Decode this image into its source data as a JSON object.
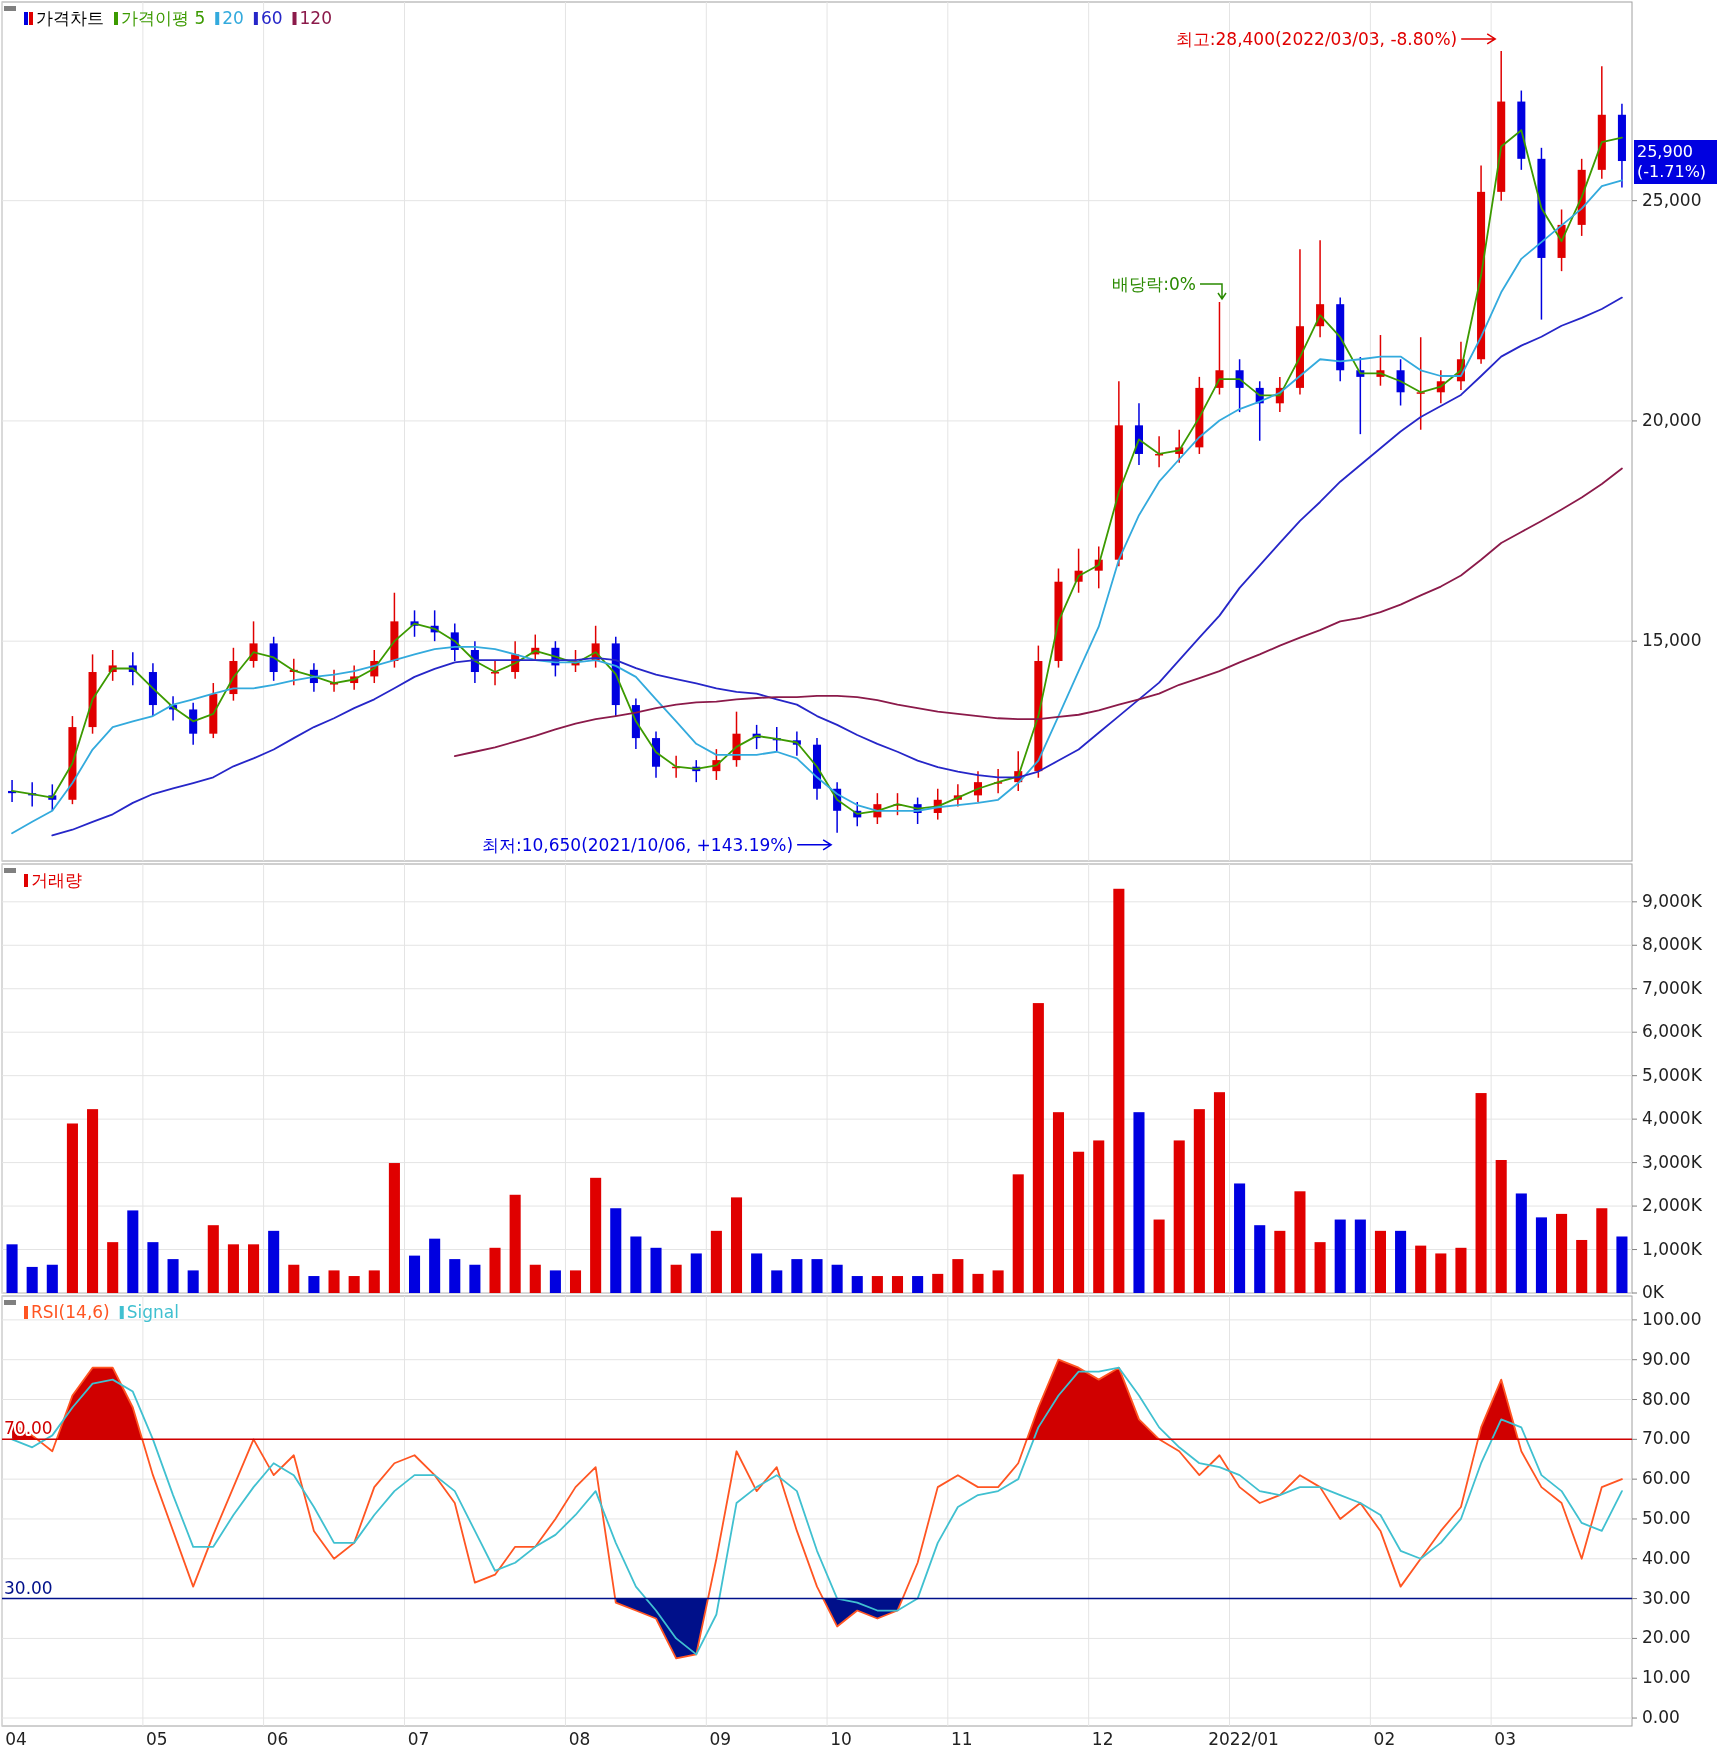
{
  "chart_data": [
    {
      "type": "candlestick",
      "legend": "top left",
      "grid": true,
      "tick_labels": "y",
      "categories": [
        "04",
        null,
        null,
        null,
        null,
        null,
        null,
        "05",
        null,
        null,
        null,
        null,
        null,
        "06",
        null,
        null,
        null,
        null,
        null,
        null,
        "07",
        null,
        null,
        null,
        null,
        null,
        null,
        null,
        "08",
        null,
        null,
        null,
        null,
        null,
        null,
        "09",
        null,
        null,
        null,
        null,
        null,
        "10",
        null,
        null,
        null,
        null,
        null,
        "11",
        null,
        null,
        null,
        null,
        null,
        null,
        "12",
        null,
        null,
        null,
        null,
        null,
        null,
        "2022/01",
        null,
        null,
        null,
        null,
        null,
        null,
        "02",
        null,
        null,
        null,
        null,
        null,
        "03",
        null,
        null,
        null,
        null,
        null,
        null
      ],
      "ylim": [
        10010,
        29510
      ],
      "yticks": [
        {
          "value": 15000,
          "label": "15,000"
        },
        {
          "value": 20000,
          "label": "20,000"
        },
        {
          "value": 25000,
          "label": "25,000"
        }
      ],
      "series": [
        {
          "type": "candlestick",
          "name": "가격차트",
          "ohlc": [
            [
              11600,
              11850,
              11350,
              11550
            ],
            [
              11550,
              11800,
              11250,
              11500
            ],
            [
              11500,
              11750,
              11150,
              11400
            ],
            [
              11400,
              13300,
              11300,
              13050
            ],
            [
              13050,
              14700,
              12900,
              14300
            ],
            [
              14300,
              14800,
              14100,
              14450
            ],
            [
              14450,
              14750,
              14000,
              14300
            ],
            [
              14300,
              14500,
              13300,
              13550
            ],
            [
              13550,
              13750,
              13200,
              13450
            ],
            [
              13450,
              13600,
              12650,
              12900
            ],
            [
              12900,
              14050,
              12800,
              13800
            ],
            [
              13800,
              14850,
              13650,
              14550
            ],
            [
              14550,
              15450,
              14400,
              14950
            ],
            [
              14950,
              15100,
              14100,
              14300
            ],
            [
              14300,
              14600,
              14000,
              14350
            ],
            [
              14350,
              14500,
              13850,
              14050
            ],
            [
              14050,
              14350,
              13850,
              14050
            ],
            [
              14050,
              14450,
              13900,
              14200
            ],
            [
              14200,
              14800,
              14050,
              14550
            ],
            [
              14550,
              16100,
              14400,
              15450
            ],
            [
              15450,
              15700,
              15100,
              15350
            ],
            [
              15350,
              15700,
              15000,
              15200
            ],
            [
              15200,
              15400,
              14550,
              14800
            ],
            [
              14800,
              15000,
              14050,
              14300
            ],
            [
              14300,
              14550,
              14000,
              14300
            ],
            [
              14300,
              15000,
              14150,
              14700
            ],
            [
              14700,
              15150,
              14550,
              14850
            ],
            [
              14850,
              15000,
              14200,
              14450
            ],
            [
              14450,
              14800,
              14300,
              14550
            ],
            [
              14550,
              15350,
              14400,
              14950
            ],
            [
              14950,
              15100,
              13300,
              13550
            ],
            [
              13550,
              13700,
              12550,
              12800
            ],
            [
              12800,
              12950,
              11900,
              12150
            ],
            [
              12150,
              12400,
              11900,
              12150
            ],
            [
              12150,
              12300,
              11800,
              12050
            ],
            [
              12050,
              12550,
              11850,
              12300
            ],
            [
              12300,
              13400,
              12150,
              12900
            ],
            [
              12900,
              13100,
              12550,
              12800
            ],
            [
              12800,
              13050,
              12500,
              12750
            ],
            [
              12750,
              12950,
              12400,
              12650
            ],
            [
              12650,
              12800,
              11400,
              11650
            ],
            [
              11650,
              11800,
              10650,
              11150
            ],
            [
              11150,
              11350,
              10800,
              11000
            ],
            [
              11000,
              11550,
              10850,
              11300
            ],
            [
              11300,
              11550,
              11050,
              11300
            ],
            [
              11300,
              11450,
              10850,
              11100
            ],
            [
              11100,
              11650,
              10950,
              11400
            ],
            [
              11400,
              11750,
              11250,
              11500
            ],
            [
              11500,
              12050,
              11350,
              11800
            ],
            [
              11800,
              12100,
              11550,
              11800
            ],
            [
              11800,
              12500,
              11600,
              12050
            ],
            [
              12050,
              14900,
              11900,
              14550
            ],
            [
              14550,
              16650,
              14400,
              16350
            ],
            [
              16350,
              17100,
              16100,
              16600
            ],
            [
              16600,
              17150,
              16200,
              16850
            ],
            [
              16850,
              20900,
              16700,
              19900
            ],
            [
              19900,
              20400,
              19000,
              19250
            ],
            [
              19250,
              19650,
              18950,
              19250
            ],
            [
              19250,
              19800,
              19050,
              19400
            ],
            [
              19400,
              21000,
              19250,
              20750
            ],
            [
              20750,
              22700,
              20600,
              21150
            ],
            [
              21150,
              21400,
              20200,
              20750
            ],
            [
              20750,
              20900,
              19550,
              20400
            ],
            [
              20400,
              21000,
              20200,
              20750
            ],
            [
              20750,
              23900,
              20600,
              22150
            ],
            [
              22150,
              24100,
              21900,
              22650
            ],
            [
              22650,
              22800,
              20900,
              21150
            ],
            [
              21150,
              21450,
              19700,
              21000
            ],
            [
              21000,
              21950,
              20800,
              21150
            ],
            [
              21150,
              21400,
              20350,
              20650
            ],
            [
              20650,
              21900,
              19800,
              20650
            ],
            [
              20650,
              21150,
              20400,
              20900
            ],
            [
              20900,
              21800,
              20700,
              21400
            ],
            [
              21400,
              25800,
              21300,
              25200
            ],
            [
              25200,
              28400,
              25000,
              27250
            ],
            [
              27250,
              27500,
              25700,
              25950
            ],
            [
              25950,
              26200,
              22300,
              23700
            ],
            [
              23700,
              24800,
              23400,
              24450
            ],
            [
              24450,
              25950,
              24200,
              25700
            ],
            [
              25700,
              28050,
              25500,
              26950
            ],
            [
              26950,
              27200,
              25300,
              25900
            ]
          ],
          "colors": [
            "#0000e0",
            "#0000e0",
            "#0000e0",
            "#e00000",
            "#e00000",
            "#e00000",
            "#0000e0",
            "#0000e0",
            "#0000e0",
            "#0000e0",
            "#e00000",
            "#e00000",
            "#e00000",
            "#0000e0",
            "#e00000",
            "#0000e0",
            "#e00000",
            "#e00000",
            "#e00000",
            "#e00000",
            "#0000e0",
            "#0000e0",
            "#0000e0",
            "#0000e0",
            "#e00000",
            "#e00000",
            "#e00000",
            "#0000e0",
            "#e00000",
            "#e00000",
            "#0000e0",
            "#0000e0",
            "#0000e0",
            "#e00000",
            "#0000e0",
            "#e00000",
            "#e00000",
            "#0000e0",
            "#0000e0",
            "#0000e0",
            "#0000e0",
            "#0000e0",
            "#0000e0",
            "#e00000",
            "#e00000",
            "#0000e0",
            "#e00000",
            "#e00000",
            "#e00000",
            "#e00000",
            "#e00000",
            "#e00000",
            "#e00000",
            "#e00000",
            "#e00000",
            "#e00000",
            "#0000e0",
            "#e00000",
            "#e00000",
            "#e00000",
            "#e00000",
            "#0000e0",
            "#0000e0",
            "#e00000",
            "#e00000",
            "#e00000",
            "#0000e0",
            "#0000e0",
            "#e00000",
            "#0000e0",
            "#e00000",
            "#e00000",
            "#e00000",
            "#e00000",
            "#e00000",
            "#0000e0",
            "#0000e0",
            "#e00000",
            "#e00000",
            "#e00000",
            "#0000e0"
          ]
        },
        {
          "type": "line",
          "name": "가격이평 5",
          "color": "#3c9a00",
          "values": [
            11600,
            11530,
            11450,
            12230,
            13680,
            14380,
            14380,
            13930,
            13500,
            13180,
            13350,
            14180,
            14750,
            14630,
            14330,
            14200,
            14050,
            14130,
            14380,
            15000,
            15400,
            15280,
            15000,
            14550,
            14300,
            14500,
            14780,
            14650,
            14500,
            14750,
            14250,
            13180,
            12480,
            12150,
            12100,
            12180,
            12600,
            12850,
            12780,
            12700,
            12150,
            11400,
            11080,
            11150,
            11300,
            11200,
            11250,
            11450,
            11650,
            11800,
            11930,
            13300,
            15450,
            16480,
            16730,
            18380,
            19580,
            19250,
            19330,
            20080,
            20950,
            20950,
            20580,
            20580,
            21450,
            22400,
            21900,
            21080,
            21080,
            20900,
            20650,
            20780,
            21150,
            23300,
            26230,
            26600,
            24830,
            24080,
            25080,
            26330,
            26430
          ]
        },
        {
          "type": "line",
          "name": "20",
          "color": "#33aadd",
          "values": [
            10640,
            10900,
            11150,
            11780,
            12540,
            13050,
            13180,
            13300,
            13560,
            13680,
            13810,
            13930,
            13930,
            14010,
            14110,
            14190,
            14240,
            14320,
            14440,
            14570,
            14700,
            14820,
            14870,
            14870,
            14820,
            14700,
            14570,
            14520,
            14520,
            14570,
            14440,
            14190,
            13680,
            13180,
            12670,
            12420,
            12420,
            12420,
            12490,
            12340,
            11910,
            11530,
            11280,
            11150,
            11150,
            11150,
            11230,
            11280,
            11330,
            11400,
            11780,
            12290,
            13300,
            14320,
            15330,
            16850,
            17860,
            18620,
            19130,
            19630,
            20010,
            20270,
            20440,
            20640,
            21020,
            21400,
            21350,
            21400,
            21460,
            21460,
            21150,
            21020,
            21020,
            21910,
            22920,
            23680,
            24060,
            24440,
            24820,
            25330,
            25460
          ]
        },
        {
          "type": "line",
          "name": "60",
          "color": "#2626c8",
          "values": [
            null,
            null,
            10590,
            10720,
            10900,
            11070,
            11330,
            11530,
            11660,
            11780,
            11910,
            12160,
            12340,
            12540,
            12800,
            13050,
            13250,
            13480,
            13680,
            13930,
            14190,
            14370,
            14520,
            14570,
            14570,
            14570,
            14570,
            14570,
            14570,
            14620,
            14570,
            14390,
            14240,
            14140,
            14040,
            13930,
            13850,
            13810,
            13680,
            13560,
            13300,
            13100,
            12870,
            12670,
            12490,
            12290,
            12140,
            12040,
            11960,
            11910,
            11910,
            12040,
            12290,
            12540,
            12920,
            13300,
            13680,
            14060,
            14570,
            15080,
            15580,
            16210,
            16720,
            17230,
            17730,
            18160,
            18620,
            19000,
            19380,
            19760,
            20090,
            20340,
            20590,
            21020,
            21460,
            21710,
            21910,
            22160,
            22340,
            22540,
            22800
          ]
        },
        {
          "type": "line",
          "name": "120",
          "color": "#8b1a4a",
          "values": [
            null,
            null,
            null,
            null,
            null,
            null,
            null,
            null,
            null,
            null,
            null,
            null,
            null,
            null,
            null,
            null,
            null,
            null,
            null,
            null,
            null,
            null,
            12390,
            12490,
            12590,
            12720,
            12850,
            13000,
            13130,
            13230,
            13300,
            13380,
            13480,
            13560,
            13610,
            13630,
            13680,
            13710,
            13730,
            13730,
            13760,
            13760,
            13730,
            13660,
            13560,
            13480,
            13400,
            13350,
            13300,
            13250,
            13230,
            13230,
            13280,
            13330,
            13430,
            13560,
            13680,
            13810,
            14010,
            14160,
            14320,
            14520,
            14700,
            14900,
            15080,
            15250,
            15450,
            15530,
            15660,
            15830,
            16040,
            16240,
            16490,
            16850,
            17230,
            17480,
            17730,
            17990,
            18260,
            18570,
            18920
          ]
        }
      ],
      "annotations": [
        {
          "text": "최고:28,400(2022/03/03, -8.80%)",
          "x": "03",
          "y": 28400
        },
        {
          "text": "최저:10,650(2021/10/06, +143.19%)",
          "x": "10",
          "y": 10650
        },
        "배당락:0%",
        "25,900\n(-1.71%)"
      ]
    },
    {
      "type": "bar",
      "legend": "top left",
      "grid": true,
      "tick_labels": "y",
      "categories": [
        "04",
        null,
        null,
        null,
        null,
        null,
        null,
        "05",
        null,
        null,
        null,
        null,
        null,
        "06",
        null,
        null,
        null,
        null,
        null,
        null,
        "07",
        null,
        null,
        null,
        null,
        null,
        null,
        null,
        "08",
        null,
        null,
        null,
        null,
        null,
        null,
        "09",
        null,
        null,
        null,
        null,
        null,
        "10",
        null,
        null,
        null,
        null,
        null,
        "11",
        null,
        null,
        null,
        null,
        null,
        null,
        "12",
        null,
        null,
        null,
        null,
        null,
        null,
        "2022/01",
        null,
        null,
        null,
        null,
        null,
        null,
        "02",
        null,
        null,
        null,
        null,
        null,
        "03",
        null,
        null,
        null,
        null,
        null,
        null
      ],
      "ylim": [
        0,
        9870
      ],
      "yticks": [
        {
          "value": 0,
          "label": "0K"
        },
        {
          "value": 1000,
          "label": "1,000K"
        },
        {
          "value": 2000,
          "label": "2,000K"
        },
        {
          "value": 3000,
          "label": "3,000K"
        },
        {
          "value": 4000,
          "label": "4,000K"
        },
        {
          "value": 5000,
          "label": "5,000K"
        },
        {
          "value": 6000,
          "label": "6,000K"
        },
        {
          "value": 7000,
          "label": "7,000K"
        },
        {
          "value": 8000,
          "label": "8,000K"
        },
        {
          "value": 9000,
          "label": "9,000K"
        }
      ],
      "series": [
        {
          "name": "거래량",
          "color": "#e00000",
          "values": [
            1120,
            600,
            650,
            3900,
            4230,
            1170,
            1900,
            1170,
            780,
            520,
            1560,
            1120,
            1120,
            1430,
            650,
            390,
            520,
            390,
            520,
            2990,
            860,
            1250,
            780,
            650,
            1040,
            2260,
            650,
            520,
            520,
            2650,
            1950,
            1300,
            1040,
            650,
            910,
            1430,
            2200,
            910,
            520,
            780,
            780,
            650,
            390,
            390,
            390,
            390,
            440,
            780,
            440,
            520,
            2730,
            6670,
            4160,
            3250,
            3510,
            9300,
            4160,
            1690,
            3510,
            4230,
            4620,
            2520,
            1560,
            1430,
            2340,
            1170,
            1690,
            1690,
            1430,
            1430,
            1090,
            910,
            1040,
            4600,
            3060,
            2290,
            1740,
            1820,
            1220,
            1950,
            1300
          ],
          "colors": [
            "#0000e0",
            "#0000e0",
            "#0000e0",
            "#e00000",
            "#e00000",
            "#e00000",
            "#0000e0",
            "#0000e0",
            "#0000e0",
            "#0000e0",
            "#e00000",
            "#e00000",
            "#e00000",
            "#0000e0",
            "#e00000",
            "#0000e0",
            "#e00000",
            "#e00000",
            "#e00000",
            "#e00000",
            "#0000e0",
            "#0000e0",
            "#0000e0",
            "#0000e0",
            "#e00000",
            "#e00000",
            "#e00000",
            "#0000e0",
            "#e00000",
            "#e00000",
            "#0000e0",
            "#0000e0",
            "#0000e0",
            "#e00000",
            "#0000e0",
            "#e00000",
            "#e00000",
            "#0000e0",
            "#0000e0",
            "#0000e0",
            "#0000e0",
            "#0000e0",
            "#0000e0",
            "#e00000",
            "#e00000",
            "#0000e0",
            "#e00000",
            "#e00000",
            "#e00000",
            "#e00000",
            "#e00000",
            "#e00000",
            "#e00000",
            "#e00000",
            "#e00000",
            "#e00000",
            "#0000e0",
            "#e00000",
            "#e00000",
            "#e00000",
            "#e00000",
            "#0000e0",
            "#0000e0",
            "#e00000",
            "#e00000",
            "#e00000",
            "#0000e0",
            "#0000e0",
            "#e00000",
            "#0000e0",
            "#e00000",
            "#e00000",
            "#e00000",
            "#e00000",
            "#e00000",
            "#0000e0",
            "#0000e0",
            "#e00000",
            "#e00000",
            "#e00000",
            "#0000e0"
          ]
        }
      ]
    },
    {
      "type": "line",
      "legend": "top left",
      "grid": true,
      "categories": [
        "04",
        null,
        null,
        null,
        null,
        null,
        null,
        "05",
        null,
        null,
        null,
        null,
        null,
        "06",
        null,
        null,
        null,
        null,
        null,
        null,
        "07",
        null,
        null,
        null,
        null,
        null,
        null,
        null,
        "08",
        null,
        null,
        null,
        null,
        null,
        null,
        "09",
        null,
        null,
        null,
        null,
        null,
        "10",
        null,
        null,
        null,
        null,
        null,
        "11",
        null,
        null,
        null,
        null,
        null,
        null,
        "12",
        null,
        null,
        null,
        null,
        null,
        null,
        "2022/01",
        null,
        null,
        null,
        null,
        null,
        null,
        "02",
        null,
        null,
        null,
        null,
        null,
        "03",
        null,
        null,
        null,
        null,
        null,
        null
      ],
      "ylim": [
        -2,
        106
      ],
      "yticks": [
        {
          "value": 0,
          "label": "0.00"
        },
        {
          "value": 10,
          "label": "10.00"
        },
        {
          "value": 20,
          "label": "20.00"
        },
        {
          "value": 30,
          "label": "30.00"
        },
        {
          "value": 40,
          "label": "40.00"
        },
        {
          "value": 50,
          "label": "50.00"
        },
        {
          "value": 60,
          "label": "60.00"
        },
        {
          "value": 70,
          "label": "70.00"
        },
        {
          "value": 80,
          "label": "80.00"
        },
        {
          "value": 90,
          "label": "90.00"
        },
        {
          "value": 100,
          "label": "100.00"
        }
      ],
      "ref_lines": [
        {
          "axis": "y",
          "value": 70,
          "label": "70.00",
          "color": "#d00000"
        },
        {
          "axis": "y",
          "value": 30,
          "label": "30.00",
          "color": "#00108a"
        }
      ],
      "series": [
        {
          "name": "RSI(14,6)",
          "color": "#ff5522",
          "values": [
            74,
            71,
            67,
            81,
            88,
            88,
            78,
            61,
            47,
            33,
            46,
            58,
            70,
            61,
            66,
            47,
            40,
            44,
            58,
            64,
            66,
            61,
            54,
            34,
            36,
            43,
            43,
            50,
            58,
            63,
            29,
            27,
            25,
            15,
            16,
            40,
            67,
            57,
            63,
            47,
            33,
            23,
            27,
            25,
            27,
            39,
            58,
            61,
            58,
            58,
            64,
            78,
            90,
            88,
            85,
            88,
            75,
            70,
            67,
            61,
            66,
            58,
            54,
            56,
            61,
            58,
            50,
            54,
            47,
            33,
            40,
            47,
            53,
            73,
            85,
            67,
            58,
            54,
            40,
            58,
            60
          ]
        },
        {
          "name": "Signal",
          "color": "#40c0d0",
          "values": [
            70,
            68,
            71,
            78,
            84,
            85,
            82,
            70,
            56,
            43,
            43,
            51,
            58,
            64,
            61,
            53,
            44,
            44,
            51,
            57,
            61,
            61,
            57,
            47,
            37,
            39,
            43,
            46,
            51,
            57,
            44,
            33,
            27,
            20,
            16,
            26,
            54,
            58,
            61,
            57,
            42,
            30,
            29,
            27,
            27,
            30,
            44,
            53,
            56,
            57,
            60,
            73,
            81,
            87,
            87,
            88,
            81,
            73,
            68,
            64,
            63,
            61,
            57,
            56,
            58,
            58,
            56,
            54,
            51,
            42,
            40,
            44,
            50,
            64,
            75,
            73,
            61,
            57,
            49,
            47,
            57
          ]
        }
      ]
    }
  ]
}
